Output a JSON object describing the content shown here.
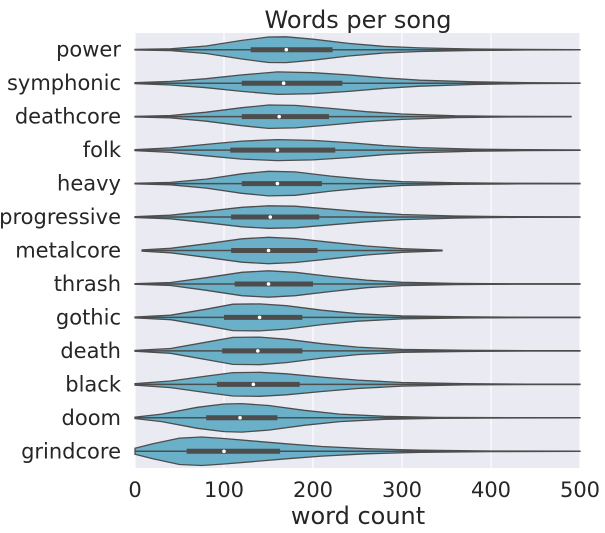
{
  "chart_data": {
    "type": "violin",
    "title": "Words per song",
    "xlabel": "word count",
    "ylabel": "",
    "xlim": [
      0,
      500
    ],
    "xticks": [
      0,
      100,
      200,
      300,
      400,
      500
    ],
    "grid": true,
    "orientation": "horizontal",
    "colors": {
      "violin_fill": "#6ab0c8",
      "outline": "#4d4d4d",
      "background": "#eaeaf2",
      "grid": "#ffffff",
      "median": "#ffffff"
    },
    "categories": [
      "power",
      "symphonic",
      "deathcore",
      "folk",
      "heavy",
      "progressive",
      "metalcore",
      "thrash",
      "gothic",
      "death",
      "black",
      "doom",
      "grindcore"
    ],
    "series": [
      {
        "category": "power",
        "q1": 130,
        "median": 170,
        "q3": 222,
        "whisker_low": 0,
        "whisker_high": 500,
        "density": [
          [
            0,
            0.02
          ],
          [
            40,
            0.06
          ],
          [
            80,
            0.25
          ],
          [
            120,
            0.62
          ],
          [
            150,
            0.85
          ],
          [
            170,
            0.86
          ],
          [
            200,
            0.7
          ],
          [
            240,
            0.42
          ],
          [
            280,
            0.22
          ],
          [
            320,
            0.12
          ],
          [
            380,
            0.05
          ],
          [
            440,
            0.02
          ],
          [
            500,
            0.01
          ]
        ]
      },
      {
        "category": "symphonic",
        "q1": 120,
        "median": 167,
        "q3": 233,
        "whisker_low": 0,
        "whisker_high": 500,
        "density": [
          [
            0,
            0.03
          ],
          [
            40,
            0.12
          ],
          [
            80,
            0.3
          ],
          [
            120,
            0.55
          ],
          [
            160,
            0.75
          ],
          [
            200,
            0.7
          ],
          [
            240,
            0.55
          ],
          [
            280,
            0.35
          ],
          [
            320,
            0.2
          ],
          [
            380,
            0.09
          ],
          [
            440,
            0.03
          ],
          [
            500,
            0.01
          ]
        ]
      },
      {
        "category": "deathcore",
        "q1": 120,
        "median": 162,
        "q3": 218,
        "whisker_low": 0,
        "whisker_high": 490,
        "density": [
          [
            0,
            0.02
          ],
          [
            40,
            0.08
          ],
          [
            80,
            0.3
          ],
          [
            120,
            0.6
          ],
          [
            150,
            0.78
          ],
          [
            180,
            0.75
          ],
          [
            220,
            0.55
          ],
          [
            260,
            0.33
          ],
          [
            300,
            0.18
          ],
          [
            360,
            0.06
          ],
          [
            420,
            0.02
          ],
          [
            490,
            0.01
          ]
        ]
      },
      {
        "category": "folk",
        "q1": 107,
        "median": 160,
        "q3": 225,
        "whisker_low": 0,
        "whisker_high": 500,
        "density": [
          [
            0,
            0.03
          ],
          [
            40,
            0.15
          ],
          [
            80,
            0.38
          ],
          [
            120,
            0.6
          ],
          [
            160,
            0.7
          ],
          [
            200,
            0.65
          ],
          [
            240,
            0.5
          ],
          [
            280,
            0.3
          ],
          [
            320,
            0.17
          ],
          [
            380,
            0.07
          ],
          [
            440,
            0.03
          ],
          [
            500,
            0.01
          ]
        ]
      },
      {
        "category": "heavy",
        "q1": 120,
        "median": 160,
        "q3": 210,
        "whisker_low": 0,
        "whisker_high": 500,
        "density": [
          [
            0,
            0.02
          ],
          [
            40,
            0.08
          ],
          [
            80,
            0.3
          ],
          [
            120,
            0.65
          ],
          [
            150,
            0.82
          ],
          [
            180,
            0.78
          ],
          [
            220,
            0.5
          ],
          [
            260,
            0.28
          ],
          [
            300,
            0.13
          ],
          [
            360,
            0.05
          ],
          [
            430,
            0.02
          ],
          [
            500,
            0.01
          ]
        ]
      },
      {
        "category": "progressive",
        "q1": 108,
        "median": 152,
        "q3": 207,
        "whisker_low": 0,
        "whisker_high": 500,
        "density": [
          [
            0,
            0.03
          ],
          [
            40,
            0.12
          ],
          [
            80,
            0.38
          ],
          [
            120,
            0.65
          ],
          [
            150,
            0.75
          ],
          [
            180,
            0.72
          ],
          [
            220,
            0.52
          ],
          [
            260,
            0.32
          ],
          [
            300,
            0.17
          ],
          [
            360,
            0.07
          ],
          [
            430,
            0.02
          ],
          [
            500,
            0.01
          ]
        ]
      },
      {
        "category": "metalcore",
        "q1": 108,
        "median": 150,
        "q3": 205,
        "whisker_low": 8,
        "whisker_high": 345,
        "density": [
          [
            8,
            0.04
          ],
          [
            40,
            0.15
          ],
          [
            80,
            0.45
          ],
          [
            120,
            0.78
          ],
          [
            150,
            0.88
          ],
          [
            180,
            0.8
          ],
          [
            220,
            0.55
          ],
          [
            260,
            0.3
          ],
          [
            300,
            0.13
          ],
          [
            345,
            0.03
          ]
        ]
      },
      {
        "category": "thrash",
        "q1": 112,
        "median": 150,
        "q3": 200,
        "whisker_low": 0,
        "whisker_high": 500,
        "density": [
          [
            0,
            0.02
          ],
          [
            40,
            0.1
          ],
          [
            80,
            0.42
          ],
          [
            120,
            0.78
          ],
          [
            150,
            0.88
          ],
          [
            180,
            0.78
          ],
          [
            220,
            0.5
          ],
          [
            260,
            0.25
          ],
          [
            300,
            0.11
          ],
          [
            360,
            0.04
          ],
          [
            430,
            0.01
          ],
          [
            500,
            0.01
          ]
        ]
      },
      {
        "category": "gothic",
        "q1": 100,
        "median": 140,
        "q3": 188,
        "whisker_low": 0,
        "whisker_high": 500,
        "density": [
          [
            0,
            0.03
          ],
          [
            40,
            0.15
          ],
          [
            80,
            0.55
          ],
          [
            110,
            0.88
          ],
          [
            140,
            0.9
          ],
          [
            170,
            0.78
          ],
          [
            210,
            0.48
          ],
          [
            250,
            0.25
          ],
          [
            300,
            0.1
          ],
          [
            370,
            0.04
          ],
          [
            440,
            0.01
          ],
          [
            500,
            0.01
          ]
        ]
      },
      {
        "category": "death",
        "q1": 98,
        "median": 138,
        "q3": 188,
        "whisker_low": 0,
        "whisker_high": 500,
        "density": [
          [
            0,
            0.03
          ],
          [
            40,
            0.16
          ],
          [
            80,
            0.58
          ],
          [
            110,
            0.9
          ],
          [
            140,
            0.92
          ],
          [
            170,
            0.78
          ],
          [
            210,
            0.48
          ],
          [
            250,
            0.25
          ],
          [
            300,
            0.1
          ],
          [
            370,
            0.04
          ],
          [
            440,
            0.01
          ],
          [
            500,
            0.01
          ]
        ]
      },
      {
        "category": "black",
        "q1": 92,
        "median": 133,
        "q3": 185,
        "whisker_low": 0,
        "whisker_high": 500,
        "density": [
          [
            0,
            0.05
          ],
          [
            40,
            0.22
          ],
          [
            80,
            0.55
          ],
          [
            110,
            0.78
          ],
          [
            140,
            0.8
          ],
          [
            170,
            0.7
          ],
          [
            210,
            0.48
          ],
          [
            250,
            0.28
          ],
          [
            300,
            0.12
          ],
          [
            370,
            0.04
          ],
          [
            440,
            0.01
          ],
          [
            500,
            0.01
          ]
        ]
      },
      {
        "category": "doom",
        "q1": 80,
        "median": 118,
        "q3": 160,
        "whisker_low": 0,
        "whisker_high": 500,
        "density": [
          [
            0,
            0.05
          ],
          [
            30,
            0.25
          ],
          [
            70,
            0.7
          ],
          [
            100,
            0.92
          ],
          [
            120,
            0.95
          ],
          [
            150,
            0.82
          ],
          [
            190,
            0.5
          ],
          [
            230,
            0.25
          ],
          [
            280,
            0.1
          ],
          [
            340,
            0.03
          ],
          [
            420,
            0.01
          ],
          [
            500,
            0.005
          ]
        ]
      },
      {
        "category": "grindcore",
        "q1": 58,
        "median": 100,
        "q3": 163,
        "whisker_low": 0,
        "whisker_high": 500,
        "density": [
          [
            0,
            0.2
          ],
          [
            20,
            0.5
          ],
          [
            50,
            0.88
          ],
          [
            75,
            0.95
          ],
          [
            100,
            0.85
          ],
          [
            130,
            0.7
          ],
          [
            170,
            0.5
          ],
          [
            210,
            0.32
          ],
          [
            260,
            0.17
          ],
          [
            320,
            0.07
          ],
          [
            400,
            0.02
          ],
          [
            500,
            0.01
          ]
        ]
      }
    ]
  }
}
